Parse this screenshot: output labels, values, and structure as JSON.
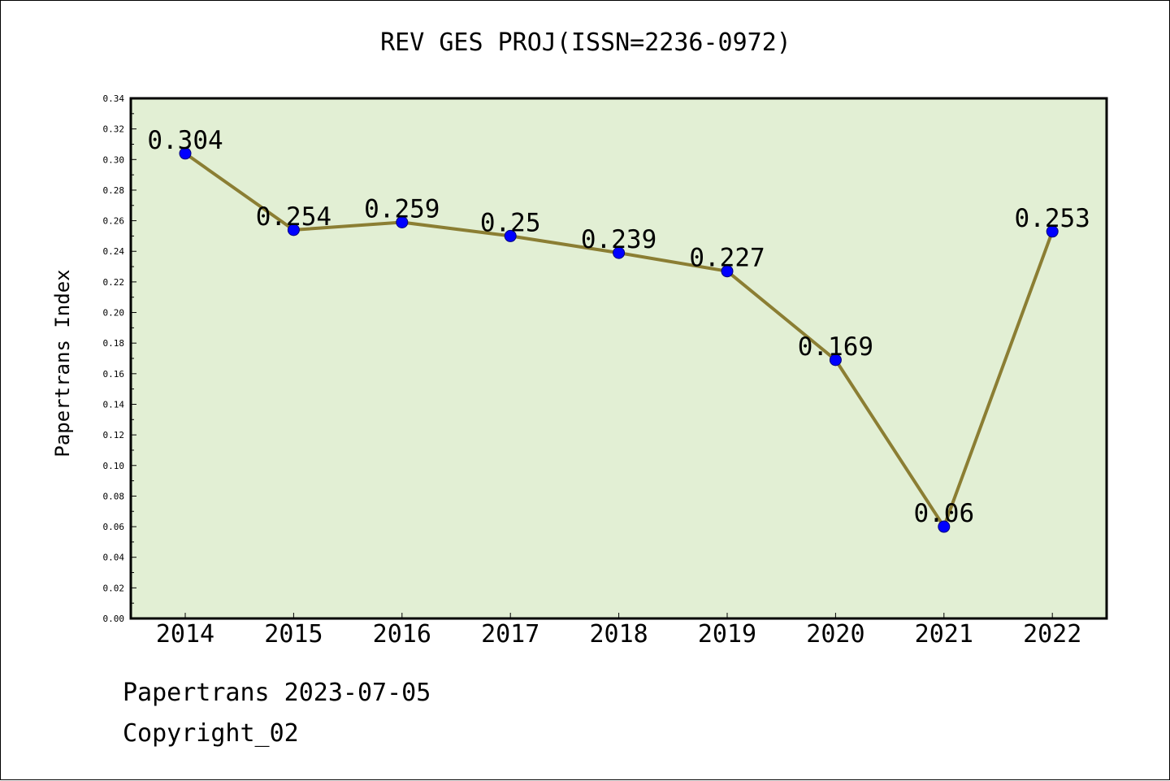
{
  "chart_data": {
    "type": "line",
    "title": "REV GES PROJ(ISSN=2236-0972)",
    "xlabel": "",
    "ylabel": "Papertrans Index",
    "categories": [
      "2014",
      "2015",
      "2016",
      "2017",
      "2018",
      "2019",
      "2020",
      "2021",
      "2022"
    ],
    "values": [
      0.304,
      0.254,
      0.259,
      0.25,
      0.239,
      0.227,
      0.169,
      0.06,
      0.253
    ],
    "data_labels": [
      "0.304",
      "0.254",
      "0.259",
      "0.25",
      "0.239",
      "0.227",
      "0.169",
      "0.06",
      "0.253"
    ],
    "ylim": [
      0,
      0.34
    ],
    "yticks": [
      "0.00",
      "0.02",
      "0.04",
      "0.06",
      "0.08",
      "0.10",
      "0.12",
      "0.14",
      "0.16",
      "0.18",
      "0.20",
      "0.22",
      "0.24",
      "0.26",
      "0.28",
      "0.30",
      "0.32",
      "0.34"
    ],
    "grid": false,
    "colors": {
      "plot_background": "#e2efd4",
      "line": "#8b7e33",
      "marker": "#0000ff"
    }
  },
  "footer": {
    "date_line": "Papertrans 2023-07-05",
    "copyright": "Copyright_02"
  }
}
